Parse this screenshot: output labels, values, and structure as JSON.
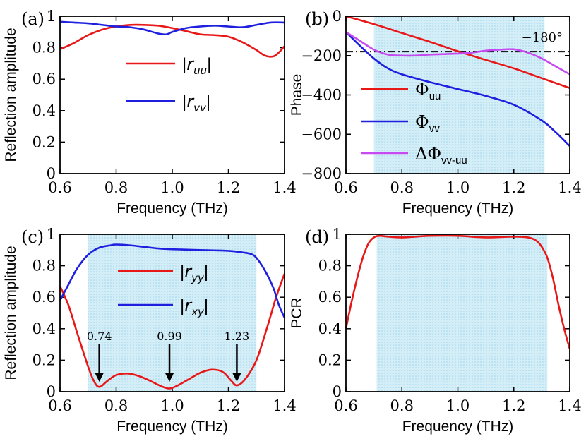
{
  "chart_data": [
    {
      "id": "a",
      "type": "line",
      "panel_label": "(a)",
      "xlabel": "Frequency (THz)",
      "ylabel": "Reflection amplitude",
      "xlim": [
        0.6,
        1.4
      ],
      "ylim": [
        0,
        1
      ],
      "xticks": [
        "0.6",
        "0.8",
        "1.0",
        "1.2",
        "1.4"
      ],
      "yticks": [
        "0",
        "0.2",
        "0.4",
        "0.6",
        "0.8",
        "1"
      ],
      "legend": [
        "|r_uu|",
        "|r_vv|"
      ],
      "shaded_range": null,
      "series": [
        {
          "name": "|r_uu|",
          "color": "#e81818",
          "x": [
            0.6,
            0.65,
            0.7,
            0.75,
            0.8,
            0.85,
            0.9,
            0.95,
            1.0,
            1.05,
            1.1,
            1.15,
            1.2,
            1.25,
            1.3,
            1.33,
            1.36,
            1.38,
            1.4
          ],
          "y": [
            0.79,
            0.83,
            0.88,
            0.915,
            0.935,
            0.945,
            0.945,
            0.94,
            0.925,
            0.905,
            0.885,
            0.88,
            0.87,
            0.835,
            0.785,
            0.75,
            0.745,
            0.77,
            0.81
          ]
        },
        {
          "name": "|r_vv|",
          "color": "#1f1fe0",
          "x": [
            0.6,
            0.65,
            0.7,
            0.75,
            0.8,
            0.85,
            0.9,
            0.95,
            0.98,
            1.0,
            1.05,
            1.1,
            1.15,
            1.2,
            1.25,
            1.3,
            1.35,
            1.4
          ],
          "y": [
            0.965,
            0.96,
            0.955,
            0.945,
            0.935,
            0.93,
            0.915,
            0.89,
            0.885,
            0.9,
            0.925,
            0.935,
            0.94,
            0.935,
            0.93,
            0.945,
            0.96,
            0.96
          ]
        }
      ]
    },
    {
      "id": "b",
      "type": "line",
      "panel_label": "(b)",
      "xlabel": "Frequency (THz)",
      "ylabel": "Phase",
      "xlim": [
        0.6,
        1.4
      ],
      "ylim": [
        -800,
        0
      ],
      "xticks": [
        "0.6",
        "0.8",
        "1.0",
        "1.2",
        "1.4"
      ],
      "yticks": [
        "0",
        "-200",
        "-400",
        "-600",
        "-800"
      ],
      "legend": [
        "Φuu",
        "Φvv",
        "ΔΦvv-uu"
      ],
      "shaded_range": [
        0.7,
        1.31
      ],
      "reference_line": {
        "y": -180,
        "label": "−180°"
      },
      "series": [
        {
          "name": "Φuu",
          "color": "#e81818",
          "x": [
            0.6,
            0.7,
            0.8,
            0.9,
            1.0,
            1.1,
            1.2,
            1.3,
            1.4
          ],
          "y": [
            0,
            -40,
            -85,
            -130,
            -178,
            -222,
            -265,
            -315,
            -365
          ]
        },
        {
          "name": "Φvv",
          "color": "#1f1fe0",
          "x": [
            0.6,
            0.65,
            0.7,
            0.75,
            0.8,
            0.9,
            1.0,
            1.1,
            1.2,
            1.3,
            1.35,
            1.4
          ],
          "y": [
            -80,
            -150,
            -215,
            -265,
            -295,
            -335,
            -370,
            -405,
            -450,
            -530,
            -590,
            -660
          ]
        },
        {
          "name": "ΔΦvv-uu",
          "color": "#c54bf0",
          "x": [
            0.6,
            0.65,
            0.7,
            0.75,
            0.8,
            0.85,
            0.9,
            1.0,
            1.05,
            1.1,
            1.15,
            1.2,
            1.25,
            1.3,
            1.35,
            1.4
          ],
          "y": [
            -80,
            -125,
            -170,
            -195,
            -200,
            -200,
            -195,
            -190,
            -185,
            -175,
            -170,
            -168,
            -185,
            -215,
            -255,
            -295
          ]
        }
      ]
    },
    {
      "id": "c",
      "type": "line",
      "panel_label": "(c)",
      "xlabel": "Frequency (THz)",
      "ylabel": "Reflection amplitude",
      "xlim": [
        0.6,
        1.4
      ],
      "ylim": [
        0,
        1
      ],
      "xticks": [
        "0.6",
        "0.8",
        "1.0",
        "1.2",
        "1.4"
      ],
      "yticks": [
        "0",
        "0.2",
        "0.4",
        "0.6",
        "0.8",
        "1"
      ],
      "legend": [
        "|r_yy|",
        "|r_xy|"
      ],
      "shaded_range": [
        0.7,
        1.3
      ],
      "annotations": [
        {
          "x": 0.74,
          "label": "0.74"
        },
        {
          "x": 0.99,
          "label": "0.99"
        },
        {
          "x": 1.23,
          "label": "1.23"
        }
      ],
      "series": [
        {
          "name": "|r_yy|",
          "color": "#e81818",
          "x": [
            0.6,
            0.63,
            0.66,
            0.7,
            0.72,
            0.74,
            0.77,
            0.8,
            0.84,
            0.88,
            0.92,
            0.96,
            0.99,
            1.02,
            1.06,
            1.1,
            1.14,
            1.18,
            1.21,
            1.23,
            1.26,
            1.3,
            1.34,
            1.37,
            1.4
          ],
          "y": [
            0.67,
            0.55,
            0.38,
            0.16,
            0.07,
            0.03,
            0.07,
            0.105,
            0.115,
            0.1,
            0.07,
            0.035,
            0.02,
            0.04,
            0.08,
            0.12,
            0.14,
            0.125,
            0.07,
            0.04,
            0.08,
            0.2,
            0.42,
            0.6,
            0.75
          ]
        },
        {
          "name": "|r_xy|",
          "color": "#1f1fe0",
          "x": [
            0.6,
            0.63,
            0.66,
            0.7,
            0.74,
            0.78,
            0.8,
            0.85,
            0.9,
            0.95,
            1.0,
            1.1,
            1.2,
            1.25,
            1.28,
            1.3,
            1.33,
            1.36,
            1.38,
            1.4
          ],
          "y": [
            0.58,
            0.68,
            0.78,
            0.87,
            0.915,
            0.93,
            0.935,
            0.93,
            0.92,
            0.91,
            0.905,
            0.9,
            0.895,
            0.885,
            0.875,
            0.85,
            0.77,
            0.66,
            0.55,
            0.47
          ]
        }
      ]
    },
    {
      "id": "d",
      "type": "line",
      "panel_label": "(d)",
      "xlabel": "Frequency (THz)",
      "ylabel": "PCR",
      "xlim": [
        0.6,
        1.4
      ],
      "ylim": [
        0,
        1
      ],
      "xticks": [
        "0.6",
        "0.8",
        "1.0",
        "1.2",
        "1.4"
      ],
      "yticks": [
        "0",
        "0.2",
        "0.4",
        "0.6",
        "0.8",
        "1"
      ],
      "legend": [],
      "shaded_range": [
        0.71,
        1.32
      ],
      "series": [
        {
          "name": "PCR",
          "color": "#e81818",
          "x": [
            0.6,
            0.62,
            0.64,
            0.66,
            0.68,
            0.7,
            0.72,
            0.75,
            0.8,
            0.9,
            1.0,
            1.1,
            1.2,
            1.25,
            1.28,
            1.3,
            1.32,
            1.34,
            1.36,
            1.38,
            1.4
          ],
          "y": [
            0.4,
            0.57,
            0.72,
            0.85,
            0.94,
            0.98,
            0.99,
            0.985,
            0.98,
            0.99,
            0.99,
            0.98,
            0.985,
            0.98,
            0.96,
            0.92,
            0.85,
            0.72,
            0.55,
            0.4,
            0.27
          ]
        }
      ]
    }
  ]
}
